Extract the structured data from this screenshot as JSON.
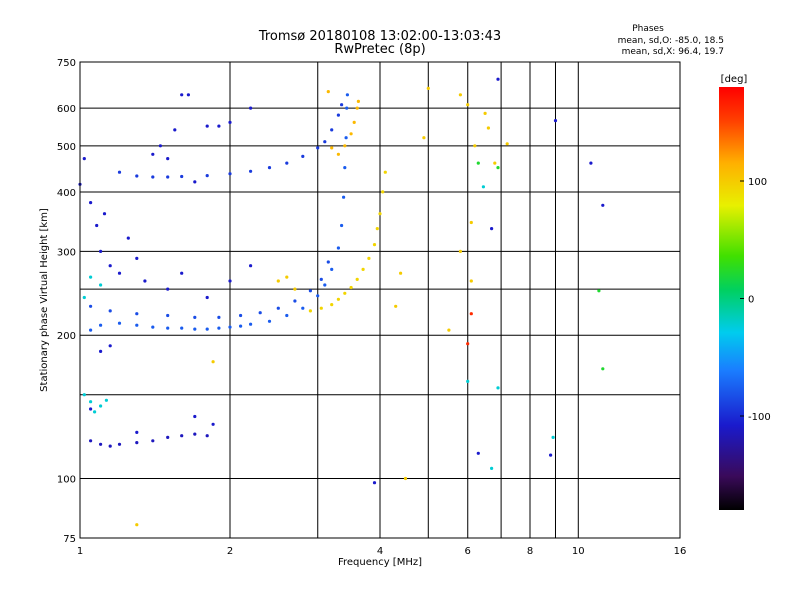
{
  "chart_data": {
    "type": "scatter",
    "title": "Tromsø 20180108 13:02:00-13:03:43",
    "subtitle": "RwPretec (8p)",
    "stats": {
      "heading": "Phases",
      "line1": "mean, sd,O: -85.0, 18.5",
      "line2": "mean, sd,X:  96.4, 19.7"
    },
    "xlabel": "Frequency [MHz]",
    "ylabel": "Stationary phase Virtual Height [km]",
    "x_scale": "log2",
    "y_scale": "log",
    "xlim": [
      1,
      16
    ],
    "ylim": [
      75,
      750
    ],
    "x_ticks": [
      1,
      2,
      4,
      6,
      8,
      10,
      16
    ],
    "x_tick_labels": [
      "1",
      "2",
      "4",
      "6",
      "8",
      "10",
      "16"
    ],
    "x_minor_grid": [
      3,
      5,
      7,
      9
    ],
    "y_ticks": [
      75,
      100,
      200,
      300,
      400,
      500,
      600,
      750
    ],
    "y_tick_labels": [
      "75",
      "100",
      "200",
      "300",
      "400",
      "500",
      "600",
      "750"
    ],
    "y_minor_grid": [
      150,
      250
    ],
    "grid": true,
    "colorbar": {
      "label": "[deg]",
      "range": [
        -180,
        180
      ],
      "ticks": [
        100,
        0,
        -100
      ],
      "tick_labels": [
        "100",
        "0",
        "-100"
      ],
      "placement": "right"
    },
    "series": [
      {
        "key": "o_f2_trace",
        "phase_deg": -90,
        "points": [
          [
            1.05,
            205
          ],
          [
            1.1,
            210
          ],
          [
            1.2,
            212
          ],
          [
            1.3,
            210
          ],
          [
            1.4,
            208
          ],
          [
            1.5,
            207
          ],
          [
            1.6,
            207
          ],
          [
            1.7,
            206
          ],
          [
            1.8,
            206
          ],
          [
            1.9,
            207
          ],
          [
            2.0,
            208
          ],
          [
            2.1,
            209
          ],
          [
            2.2,
            211
          ],
          [
            2.4,
            214
          ],
          [
            2.6,
            220
          ],
          [
            2.8,
            228
          ],
          [
            3.0,
            242
          ],
          [
            3.1,
            255
          ],
          [
            3.2,
            275
          ],
          [
            3.3,
            305
          ],
          [
            3.35,
            340
          ],
          [
            3.38,
            390
          ],
          [
            3.4,
            450
          ],
          [
            3.42,
            520
          ],
          [
            3.43,
            600
          ],
          [
            3.44,
            640
          ]
        ]
      },
      {
        "key": "o_f2_upper_band",
        "phase_deg": -95,
        "points": [
          [
            1.05,
            230
          ],
          [
            1.15,
            225
          ],
          [
            1.3,
            222
          ],
          [
            1.5,
            220
          ],
          [
            1.7,
            218
          ],
          [
            1.9,
            218
          ],
          [
            2.1,
            220
          ],
          [
            2.3,
            223
          ],
          [
            2.5,
            228
          ],
          [
            2.7,
            236
          ],
          [
            2.9,
            248
          ],
          [
            3.05,
            262
          ],
          [
            3.15,
            285
          ]
        ]
      },
      {
        "key": "o_f2_upper_trace",
        "phase_deg": -100,
        "points": [
          [
            1.2,
            440
          ],
          [
            1.3,
            432
          ],
          [
            1.4,
            430
          ],
          [
            1.5,
            430
          ],
          [
            1.6,
            431
          ],
          [
            1.8,
            433
          ],
          [
            2.0,
            437
          ],
          [
            2.2,
            442
          ],
          [
            2.4,
            450
          ],
          [
            2.6,
            460
          ],
          [
            2.8,
            475
          ],
          [
            3.0,
            495
          ],
          [
            3.1,
            510
          ],
          [
            3.2,
            540
          ],
          [
            3.3,
            580
          ],
          [
            3.35,
            610
          ]
        ]
      },
      {
        "key": "o_low_band",
        "phase_deg": -115,
        "points": [
          [
            1.05,
            120
          ],
          [
            1.1,
            118
          ],
          [
            1.15,
            117
          ],
          [
            1.2,
            118
          ],
          [
            1.3,
            119
          ],
          [
            1.4,
            120
          ],
          [
            1.5,
            122
          ],
          [
            1.6,
            123
          ],
          [
            1.7,
            124
          ],
          [
            1.8,
            123
          ]
        ]
      },
      {
        "key": "o_scatter",
        "phase_deg": -110,
        "points": [
          [
            1.0,
            415
          ],
          [
            1.02,
            470
          ],
          [
            1.05,
            380
          ],
          [
            1.08,
            340
          ],
          [
            1.1,
            300
          ],
          [
            1.12,
            360
          ],
          [
            1.15,
            280
          ],
          [
            1.2,
            270
          ],
          [
            1.25,
            320
          ],
          [
            1.3,
            290
          ],
          [
            1.35,
            260
          ],
          [
            1.4,
            480
          ],
          [
            1.45,
            500
          ],
          [
            1.5,
            470
          ],
          [
            1.55,
            540
          ],
          [
            1.6,
            640
          ],
          [
            1.65,
            640
          ],
          [
            1.7,
            420
          ],
          [
            1.8,
            550
          ],
          [
            1.9,
            550
          ],
          [
            2.0,
            560
          ],
          [
            1.5,
            250
          ],
          [
            1.6,
            270
          ],
          [
            1.8,
            240
          ],
          [
            2.0,
            260
          ],
          [
            2.2,
            280
          ],
          [
            1.1,
            185
          ],
          [
            1.15,
            190
          ],
          [
            1.05,
            140
          ],
          [
            1.3,
            125
          ],
          [
            1.7,
            135
          ],
          [
            1.85,
            130
          ],
          [
            2.2,
            600
          ],
          [
            6.9,
            690
          ],
          [
            9.0,
            565
          ],
          [
            10.6,
            460
          ],
          [
            11.2,
            375
          ],
          [
            6.7,
            335
          ],
          [
            8.8,
            112
          ],
          [
            6.3,
            113
          ],
          [
            3.9,
            98
          ]
        ]
      },
      {
        "key": "x_f2_trace",
        "phase_deg": 95,
        "points": [
          [
            2.9,
            225
          ],
          [
            3.05,
            228
          ],
          [
            3.2,
            232
          ],
          [
            3.3,
            238
          ],
          [
            3.4,
            245
          ],
          [
            3.5,
            252
          ],
          [
            3.6,
            262
          ],
          [
            3.7,
            275
          ],
          [
            3.8,
            290
          ],
          [
            3.9,
            310
          ],
          [
            3.95,
            335
          ],
          [
            4.0,
            360
          ],
          [
            4.05,
            400
          ],
          [
            4.1,
            440
          ]
        ]
      },
      {
        "key": "x_f2_upper",
        "phase_deg": 110,
        "points": [
          [
            3.3,
            480
          ],
          [
            3.4,
            500
          ],
          [
            3.5,
            530
          ],
          [
            3.55,
            560
          ],
          [
            3.6,
            600
          ],
          [
            3.62,
            620
          ],
          [
            3.2,
            495
          ],
          [
            3.15,
            650
          ]
        ]
      },
      {
        "key": "x_scatter",
        "phase_deg": 100,
        "points": [
          [
            2.5,
            260
          ],
          [
            2.6,
            265
          ],
          [
            2.7,
            250
          ],
          [
            4.3,
            230
          ],
          [
            4.4,
            270
          ],
          [
            5.5,
            205
          ],
          [
            5.8,
            640
          ],
          [
            6.0,
            610
          ],
          [
            6.1,
            345
          ],
          [
            6.1,
            260
          ],
          [
            6.2,
            500
          ],
          [
            6.5,
            585
          ],
          [
            6.6,
            545
          ],
          [
            6.8,
            460
          ],
          [
            5.8,
            300
          ],
          [
            5.0,
            660
          ],
          [
            4.9,
            520
          ],
          [
            4.5,
            100
          ],
          [
            1.3,
            80
          ],
          [
            1.85,
            176
          ],
          [
            7.2,
            505
          ]
        ]
      },
      {
        "key": "cyan_scatter",
        "phase_deg": -40,
        "points": [
          [
            1.02,
            150
          ],
          [
            1.05,
            145
          ],
          [
            1.07,
            138
          ],
          [
            1.1,
            142
          ],
          [
            1.13,
            146
          ],
          [
            1.05,
            265
          ],
          [
            1.1,
            255
          ],
          [
            1.02,
            240
          ],
          [
            6.0,
            160
          ],
          [
            6.45,
            410
          ],
          [
            6.7,
            105
          ],
          [
            6.9,
            155
          ],
          [
            8.9,
            122
          ]
        ]
      },
      {
        "key": "green_scatter",
        "phase_deg": 20,
        "points": [
          [
            6.3,
            460
          ],
          [
            6.9,
            450
          ],
          [
            11.0,
            248
          ],
          [
            11.2,
            170
          ]
        ]
      },
      {
        "key": "red_scatter",
        "phase_deg": 160,
        "points": [
          [
            6.0,
            192
          ],
          [
            6.1,
            222
          ]
        ]
      }
    ]
  }
}
